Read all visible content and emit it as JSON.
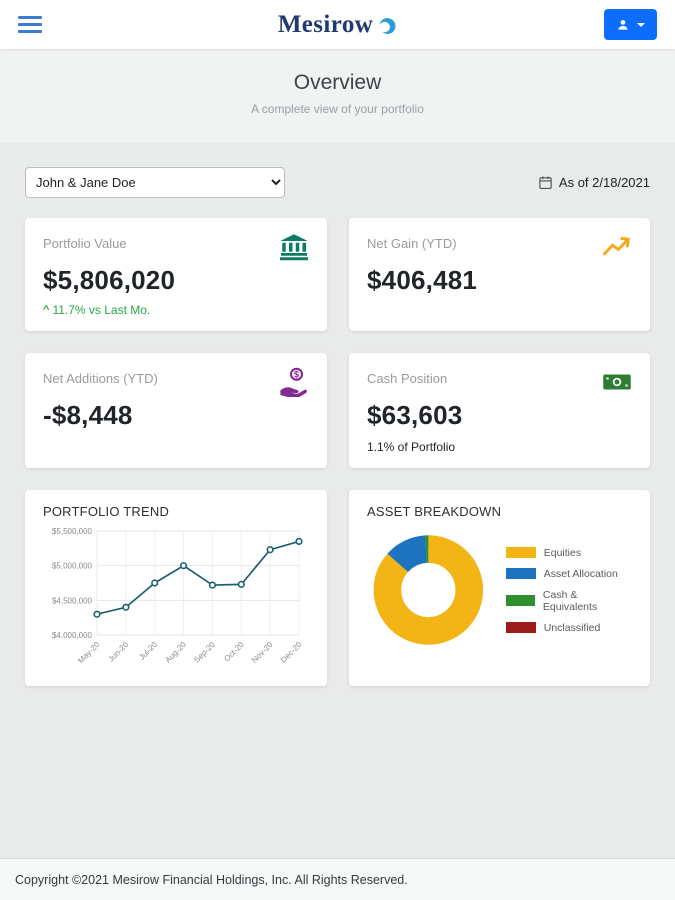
{
  "colors": {
    "brand_blue": "#1e3a70",
    "accent_blue": "#0d6efd",
    "positive_green": "#28a745"
  },
  "header": {
    "brand": "Mesirow"
  },
  "page": {
    "title": "Overview",
    "subtitle": "A complete view of your portfolio"
  },
  "controls": {
    "account_selected": "John & Jane Doe",
    "as_of_label": "As of 2/18/2021"
  },
  "cards": {
    "portfolio_value": {
      "label": "Portfolio Value",
      "value": "$5,806,020",
      "delta_icon": "^",
      "delta": "11.7% vs Last Mo.",
      "icon": "bank-icon",
      "icon_color": "#0d7a63"
    },
    "net_gain": {
      "label": "Net Gain (YTD)",
      "value": "$406,481",
      "icon": "chart-line-up-icon",
      "icon_color": "#f5a91d"
    },
    "net_additions": {
      "label": "Net Additions (YTD)",
      "value": "-$8,448",
      "icon": "hand-holding-dollar-icon",
      "icon_color": "#822a8f"
    },
    "cash_position": {
      "label": "Cash Position",
      "value": "$63,603",
      "sub": "1.1% of Portfolio",
      "icon": "money-bill-icon",
      "icon_color": "#2e7d32"
    }
  },
  "footer": {
    "copyright": "Copyright ©2021 Mesirow Financial Holdings, Inc. All Rights Reserved."
  },
  "chart_data": [
    {
      "type": "line",
      "title": "PORTFOLIO TREND",
      "x": [
        "May-20",
        "Jun-20",
        "Jul-20",
        "Aug-20",
        "Sep-20",
        "Oct-20",
        "Nov-20",
        "Dec-20"
      ],
      "values": [
        4300000,
        4400000,
        4750000,
        5000000,
        4720000,
        4730000,
        5230000,
        5350000
      ],
      "ylim": [
        4000000,
        5500000
      ],
      "yticks": [
        4000000,
        4500000,
        5000000,
        5500000
      ],
      "line_color": "#19616f",
      "grid": true,
      "legend_position": "none"
    },
    {
      "type": "pie",
      "donut": true,
      "title": "ASSET BREAKDOWN",
      "labels": [
        "Equities",
        "Asset Allocation",
        "Cash & Equivalents",
        "Unclassified"
      ],
      "values": [
        86.4,
        12.5,
        1.1,
        0
      ],
      "colors": [
        "#f3b415",
        "#1e73be",
        "#2f8f2f",
        "#9e1b1b"
      ],
      "legend_position": "right"
    }
  ]
}
